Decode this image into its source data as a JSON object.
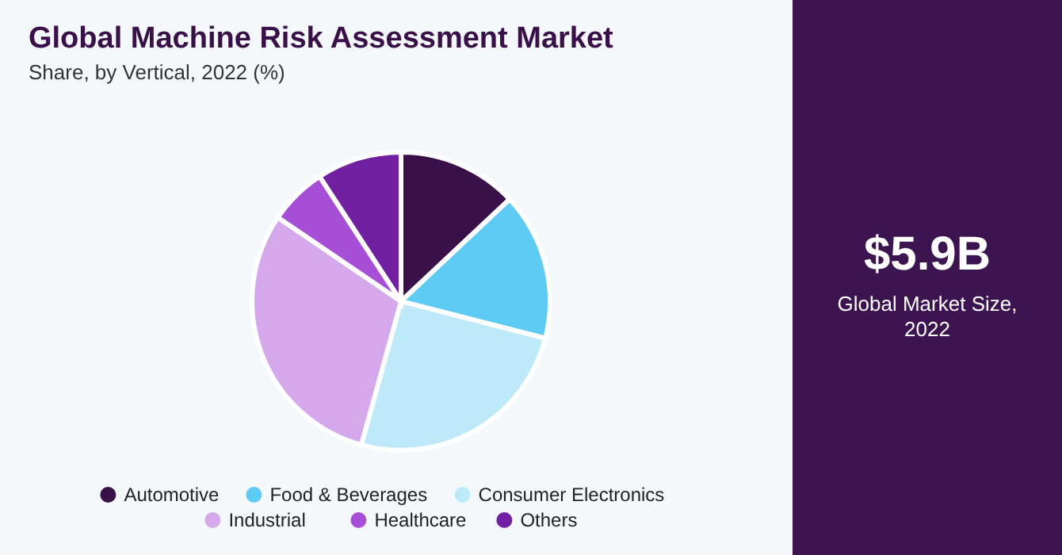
{
  "chart_data": [
    {
      "type": "pie",
      "title": "Global Machine Risk Assessment Market",
      "subtitle": "Share, by Vertical, 2022 (%)",
      "categories": [
        "Automotive",
        "Food & Beverages",
        "Consumer Electronics",
        "Industrial",
        "Healthcare",
        "Others"
      ],
      "values": [
        13,
        16,
        25.3,
        30.2,
        6.3,
        9.2
      ],
      "colors": [
        "#3a1048",
        "#5ecbf5",
        "#bde9f8",
        "#d4a8ea",
        "#a64fd6",
        "#7020a0"
      ],
      "legend": "bottom"
    },
    {
      "type": "other",
      "title": "$5.9B",
      "subtitle": "Global Market Size, 2022"
    }
  ]
}
